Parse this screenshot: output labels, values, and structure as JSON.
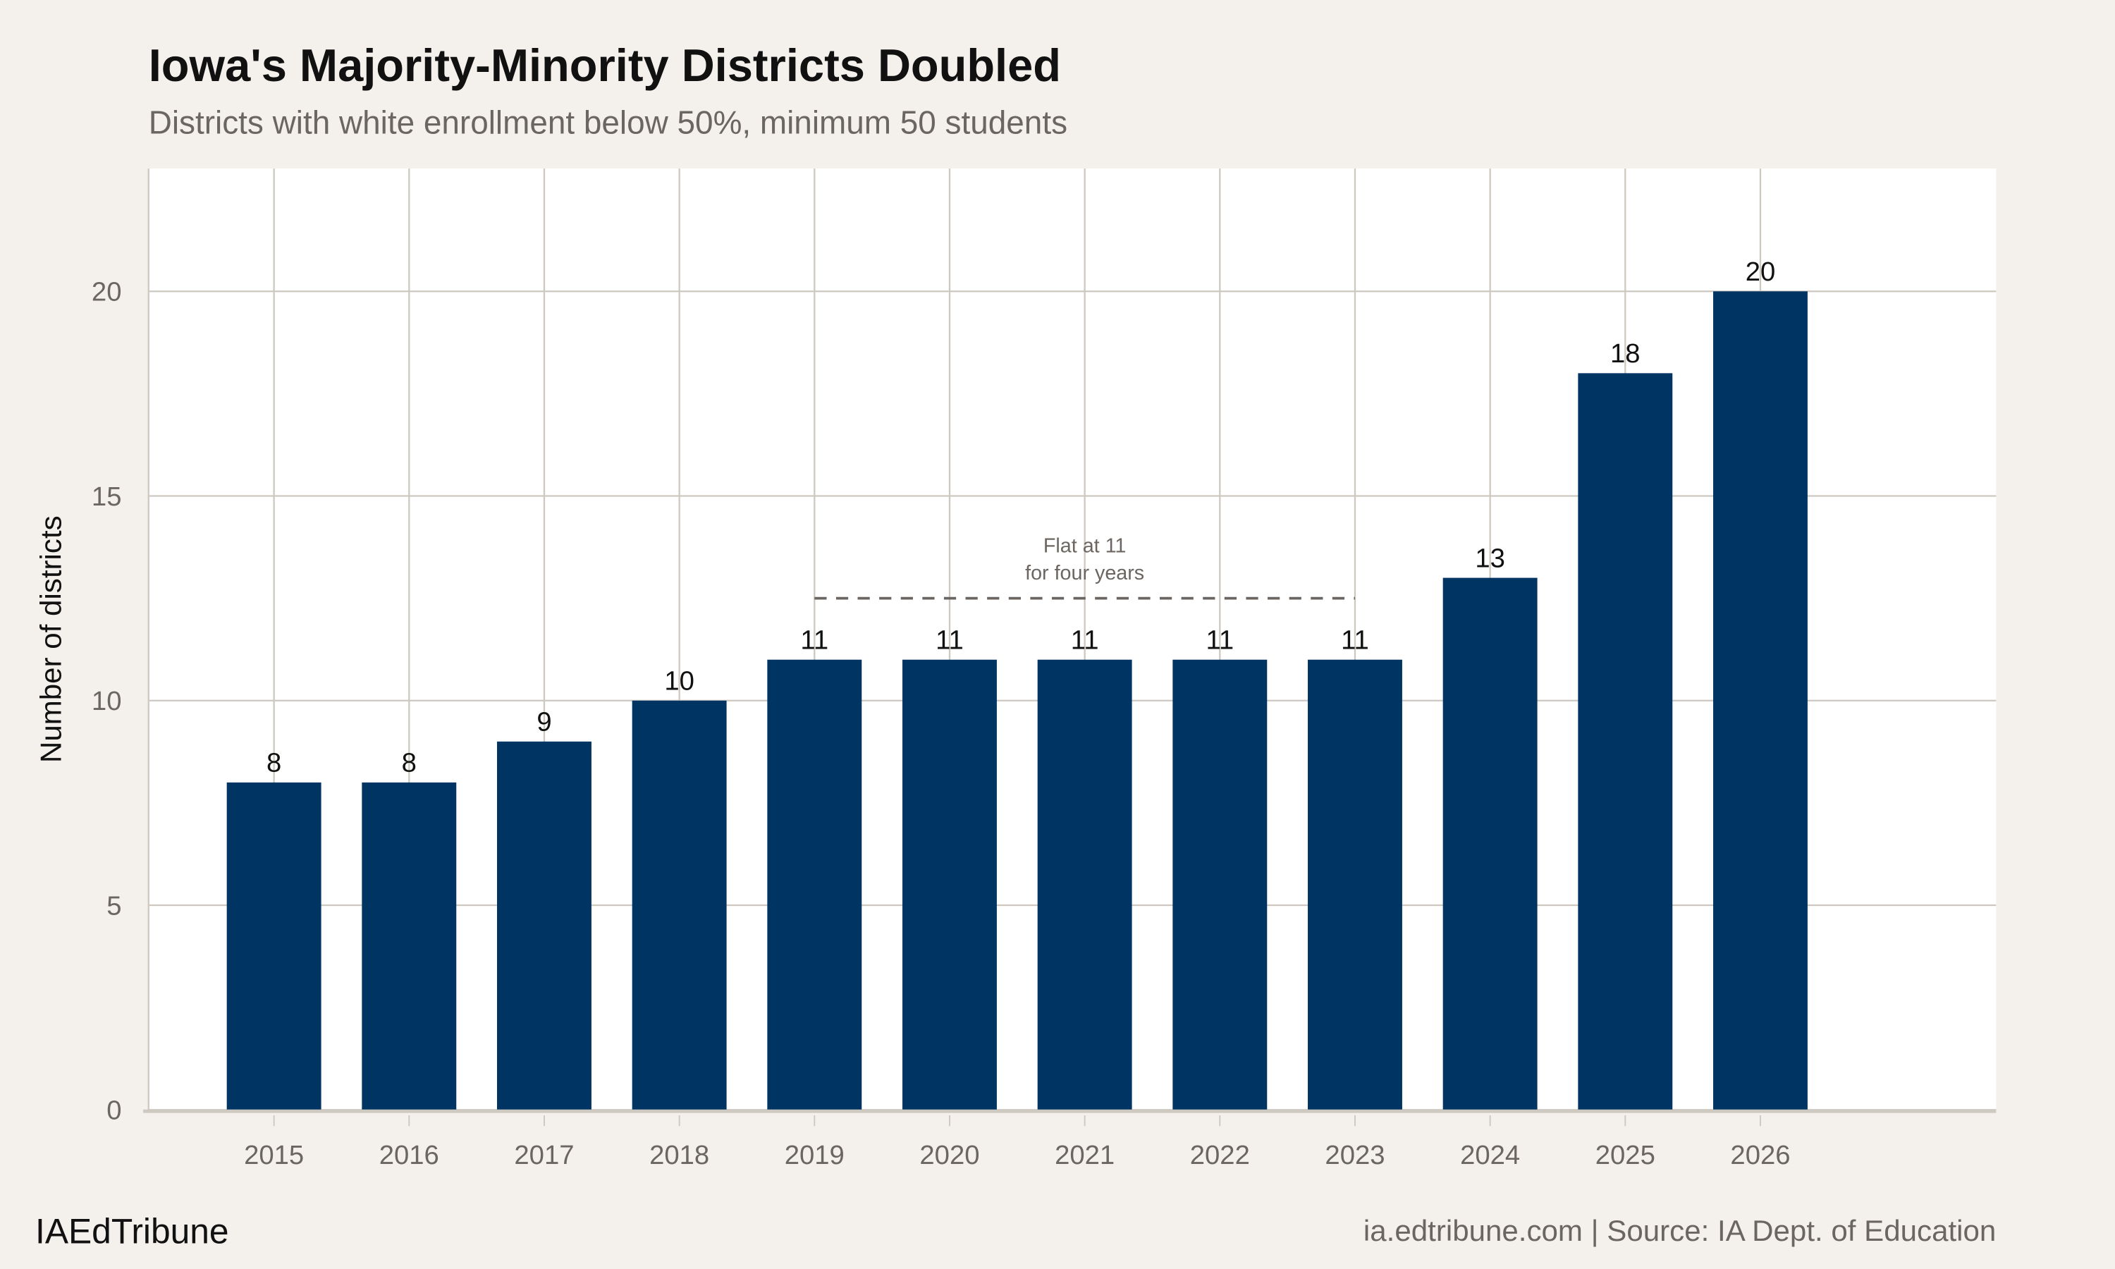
{
  "chart_data": {
    "type": "bar",
    "title": "Iowa's Majority-Minority Districts Doubled",
    "subtitle": "Districts with white enrollment below 50%, minimum 50 students",
    "xlabel": "",
    "ylabel": "Number of districts",
    "categories": [
      "2015",
      "2016",
      "2017",
      "2018",
      "2019",
      "2020",
      "2021",
      "2022",
      "2023",
      "2024",
      "2025",
      "2026"
    ],
    "values": [
      8,
      8,
      9,
      10,
      11,
      11,
      11,
      11,
      11,
      13,
      18,
      20
    ],
    "data_labels": [
      "8",
      "8",
      "9",
      "10",
      "11",
      "11",
      "11",
      "11",
      "11",
      "13",
      "18",
      "20"
    ],
    "ylim": [
      0,
      23
    ],
    "yticks": [
      0,
      5,
      10,
      15,
      20
    ],
    "ytick_labels": [
      "0",
      "5",
      "10",
      "15",
      "20"
    ],
    "grid": true,
    "annotation": {
      "text_line1": "Flat at 11",
      "text_line2": "for four years",
      "line_from": "2019",
      "line_to": "2023",
      "line_y": 12.5,
      "line_style": "dashed"
    },
    "colors": {
      "bar": "#003463",
      "background": "#f4f1ec",
      "panel": "#ffffff",
      "grid": "#cdc8c0",
      "annotation": "#6b6661"
    }
  },
  "footer": {
    "brand": "IAEdTribune",
    "source": "ia.edtribune.com | Source: IA Dept. of Education"
  }
}
